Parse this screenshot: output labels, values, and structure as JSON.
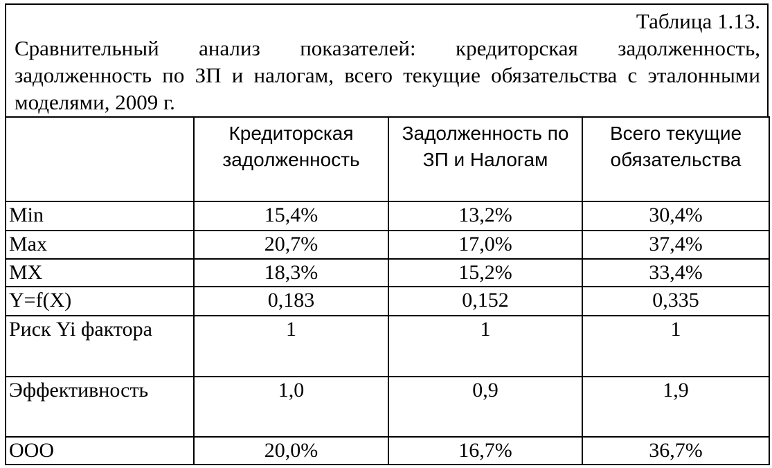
{
  "caption": {
    "number": "Таблица 1.13.",
    "title": "Сравнительный анализ показателей: кредиторская задолженность, задолженность по ЗП и налогам, всего текущие обязательства с эталонными моделями, 2009 г."
  },
  "table": {
    "columns": [
      "Кредиторская задолженность",
      "Задолженность по ЗП и Налогам",
      "Всего текущие обязательства"
    ],
    "rows": [
      [
        "Min",
        "15,4%",
        "13,2%",
        "30,4%"
      ],
      [
        "Max",
        "20,7%",
        "17,0%",
        "37,4%"
      ],
      [
        "MX",
        "18,3%",
        "15,2%",
        "33,4%"
      ],
      [
        "Y=f(X)",
        "0,183",
        "0,152",
        "0,335"
      ],
      [
        "Риск Yi фактора",
        "1",
        "1",
        "1"
      ],
      [
        "Эффективность",
        "1,0",
        "0,9",
        "1,9"
      ],
      [
        "ООО",
        "20,0%",
        "16,7%",
        "36,7%"
      ]
    ]
  }
}
